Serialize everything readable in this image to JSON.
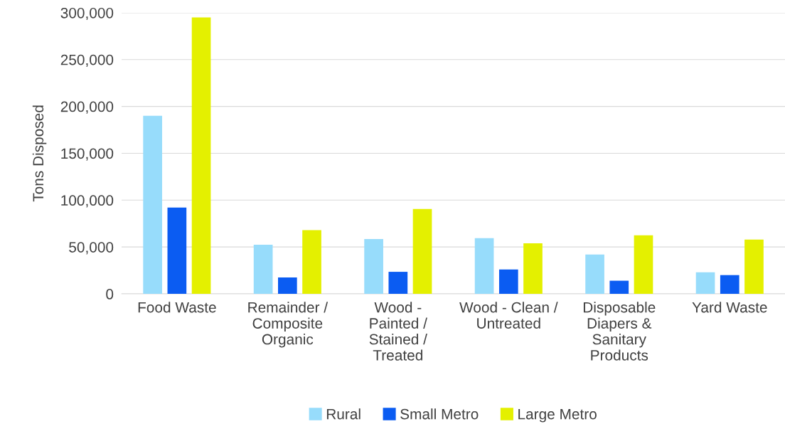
{
  "chart_data": {
    "type": "bar",
    "ylabel": "Tons Disposed",
    "categories": [
      "Food Waste",
      "Remainder /\nComposite\nOrganic",
      "Wood -\nPainted /\nStained /\nTreated",
      "Wood - Clean /\nUntreated",
      "Disposable\nDiapers &\nSanitary\nProducts",
      "Yard Waste"
    ],
    "series": [
      {
        "name": "Rural",
        "color": "#97dcfb",
        "values": [
          190000,
          52500,
          58500,
          59500,
          42000,
          23000
        ]
      },
      {
        "name": "Small Metro",
        "color": "#0b5cf2",
        "values": [
          92000,
          17500,
          23500,
          26000,
          14000,
          20000
        ]
      },
      {
        "name": "Large Metro",
        "color": "#e4f000",
        "values": [
          295000,
          68000,
          90500,
          54000,
          62500,
          58000
        ]
      }
    ],
    "ylim": [
      0,
      300000
    ],
    "yticks": [
      0,
      {
        "value": 50000,
        "label": "50,000"
      },
      {
        "value": 100000,
        "label": "100,000"
      },
      {
        "value": 150000,
        "label": "150,000"
      },
      {
        "value": 200000,
        "label": "200,000"
      },
      {
        "value": 250000,
        "label": "250,000"
      },
      {
        "value": 300000,
        "label": "300,000"
      }
    ],
    "grid": "y",
    "legend": "bottom"
  }
}
